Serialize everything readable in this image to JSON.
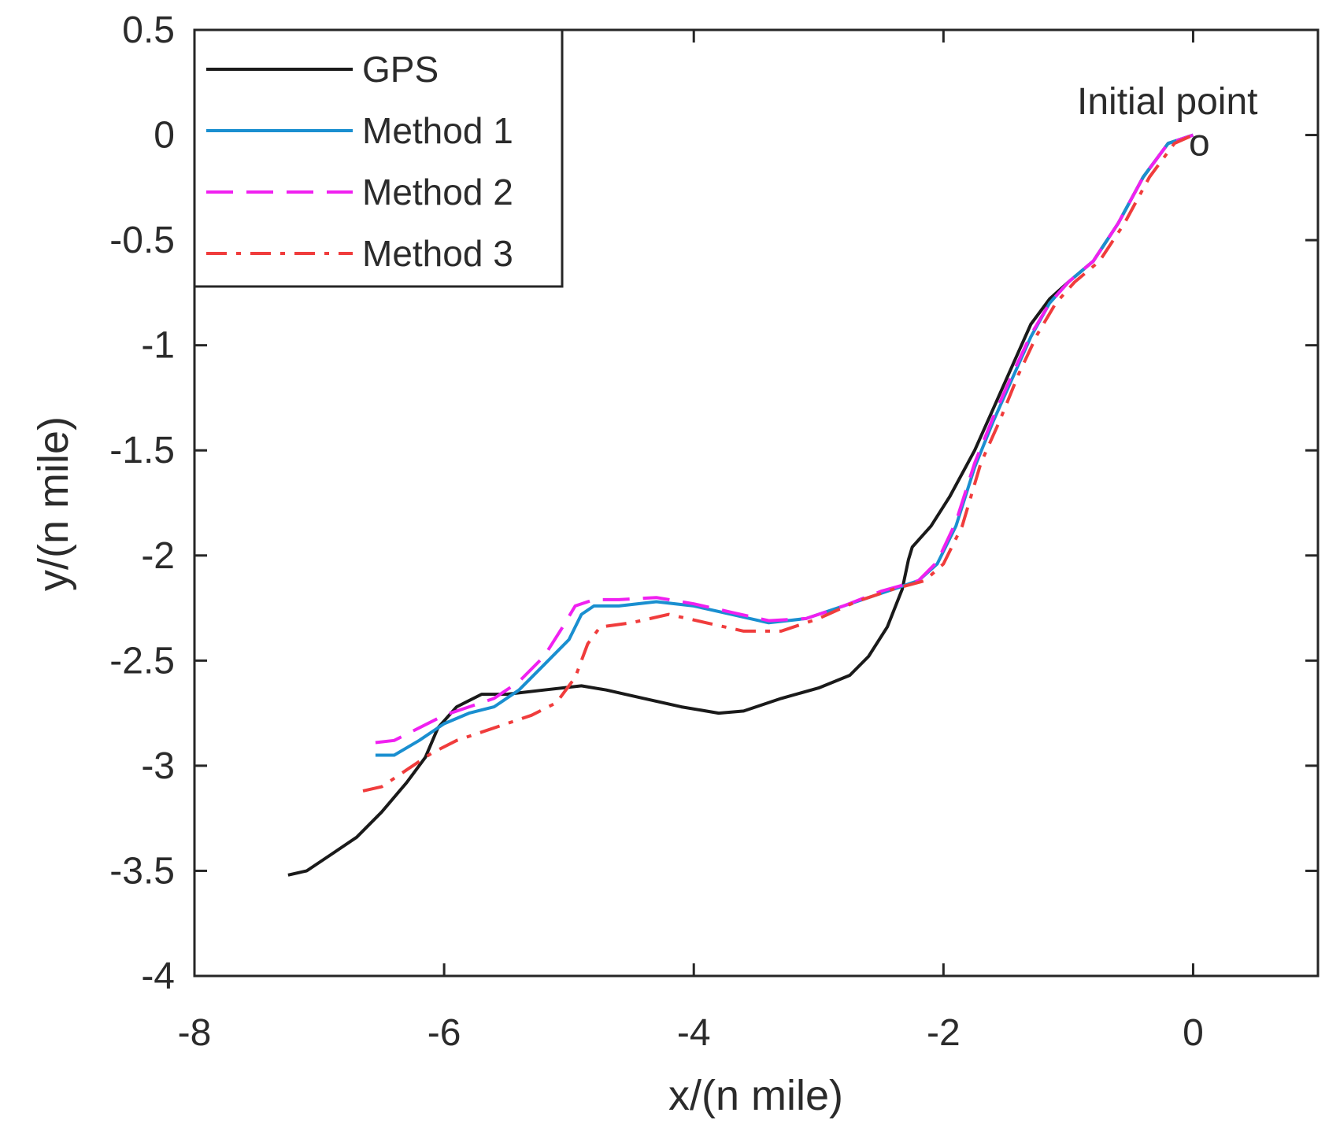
{
  "chart_data": {
    "type": "line",
    "title": "",
    "xlabel": "x/(n mile)",
    "ylabel": "y/(n mile)",
    "xlim": [
      -8,
      1
    ],
    "ylim": [
      -4,
      0.5
    ],
    "xticks": [
      -8,
      -6,
      -4,
      -2,
      0
    ],
    "xtick_labels": [
      "-8",
      "-6",
      "-4",
      "-2",
      "0"
    ],
    "yticks": [
      0.5,
      0,
      -0.5,
      -1,
      -1.5,
      -2,
      -2.5,
      -3,
      -3.5,
      -4
    ],
    "ytick_labels": [
      "0.5",
      "0",
      "-0.5",
      "-1",
      "-1.5",
      "-2",
      "-2.5",
      "-3",
      "-3.5",
      "-4"
    ],
    "legend_position": "top-left",
    "annotation": {
      "text": "Initial point",
      "marker": "o",
      "x": 0.05,
      "y": 0.0
    },
    "series": [
      {
        "name": "GPS",
        "color": "#1a1a1a",
        "style": "solid",
        "points": [
          [
            -7.25,
            -3.52
          ],
          [
            -7.1,
            -3.5
          ],
          [
            -6.9,
            -3.42
          ],
          [
            -6.7,
            -3.34
          ],
          [
            -6.5,
            -3.22
          ],
          [
            -6.3,
            -3.08
          ],
          [
            -6.15,
            -2.96
          ],
          [
            -6.05,
            -2.82
          ],
          [
            -5.9,
            -2.72
          ],
          [
            -5.7,
            -2.66
          ],
          [
            -5.5,
            -2.66
          ],
          [
            -5.2,
            -2.64
          ],
          [
            -4.9,
            -2.62
          ],
          [
            -4.7,
            -2.64
          ],
          [
            -4.4,
            -2.68
          ],
          [
            -4.1,
            -2.72
          ],
          [
            -3.8,
            -2.75
          ],
          [
            -3.6,
            -2.74
          ],
          [
            -3.3,
            -2.68
          ],
          [
            -3.0,
            -2.63
          ],
          [
            -2.75,
            -2.57
          ],
          [
            -2.6,
            -2.48
          ],
          [
            -2.45,
            -2.34
          ],
          [
            -2.33,
            -2.16
          ],
          [
            -2.28,
            -2.02
          ],
          [
            -2.25,
            -1.96
          ],
          [
            -2.1,
            -1.86
          ],
          [
            -1.95,
            -1.72
          ],
          [
            -1.75,
            -1.5
          ],
          [
            -1.6,
            -1.3
          ],
          [
            -1.45,
            -1.1
          ],
          [
            -1.3,
            -0.9
          ],
          [
            -1.15,
            -0.78
          ],
          [
            -1.0,
            -0.7
          ],
          [
            -0.8,
            -0.6
          ],
          [
            -0.6,
            -0.42
          ],
          [
            -0.4,
            -0.2
          ],
          [
            -0.2,
            -0.04
          ],
          [
            0.0,
            0.0
          ]
        ]
      },
      {
        "name": "Method 1",
        "color": "#1a8fd0",
        "style": "solid",
        "points": [
          [
            -6.55,
            -2.95
          ],
          [
            -6.4,
            -2.95
          ],
          [
            -6.2,
            -2.88
          ],
          [
            -6.0,
            -2.8
          ],
          [
            -5.8,
            -2.75
          ],
          [
            -5.6,
            -2.72
          ],
          [
            -5.4,
            -2.64
          ],
          [
            -5.2,
            -2.52
          ],
          [
            -5.0,
            -2.4
          ],
          [
            -4.9,
            -2.28
          ],
          [
            -4.8,
            -2.24
          ],
          [
            -4.6,
            -2.24
          ],
          [
            -4.3,
            -2.22
          ],
          [
            -4.0,
            -2.24
          ],
          [
            -3.7,
            -2.28
          ],
          [
            -3.4,
            -2.32
          ],
          [
            -3.1,
            -2.3
          ],
          [
            -2.8,
            -2.24
          ],
          [
            -2.5,
            -2.18
          ],
          [
            -2.2,
            -2.12
          ],
          [
            -2.05,
            -2.04
          ],
          [
            -1.9,
            -1.86
          ],
          [
            -1.75,
            -1.58
          ],
          [
            -1.6,
            -1.36
          ],
          [
            -1.45,
            -1.16
          ],
          [
            -1.3,
            -0.96
          ],
          [
            -1.15,
            -0.8
          ],
          [
            -1.0,
            -0.7
          ],
          [
            -0.8,
            -0.6
          ],
          [
            -0.6,
            -0.42
          ],
          [
            -0.4,
            -0.2
          ],
          [
            -0.2,
            -0.04
          ],
          [
            0.0,
            0.0
          ]
        ]
      },
      {
        "name": "Method 2",
        "color": "#f020f0",
        "style": "dashed",
        "points": [
          [
            -6.55,
            -2.89
          ],
          [
            -6.4,
            -2.88
          ],
          [
            -6.2,
            -2.82
          ],
          [
            -6.0,
            -2.76
          ],
          [
            -5.8,
            -2.72
          ],
          [
            -5.6,
            -2.68
          ],
          [
            -5.4,
            -2.6
          ],
          [
            -5.2,
            -2.48
          ],
          [
            -5.05,
            -2.34
          ],
          [
            -4.95,
            -2.24
          ],
          [
            -4.8,
            -2.21
          ],
          [
            -4.6,
            -2.21
          ],
          [
            -4.3,
            -2.2
          ],
          [
            -4.0,
            -2.23
          ],
          [
            -3.7,
            -2.27
          ],
          [
            -3.4,
            -2.31
          ],
          [
            -3.1,
            -2.3
          ],
          [
            -2.8,
            -2.24
          ],
          [
            -2.5,
            -2.17
          ],
          [
            -2.2,
            -2.12
          ],
          [
            -2.05,
            -2.03
          ],
          [
            -1.9,
            -1.84
          ],
          [
            -1.75,
            -1.56
          ],
          [
            -1.6,
            -1.34
          ],
          [
            -1.45,
            -1.14
          ],
          [
            -1.3,
            -0.95
          ],
          [
            -1.15,
            -0.8
          ],
          [
            -1.0,
            -0.7
          ],
          [
            -0.8,
            -0.6
          ],
          [
            -0.6,
            -0.42
          ],
          [
            -0.4,
            -0.2
          ],
          [
            -0.2,
            -0.04
          ],
          [
            0.0,
            0.0
          ]
        ]
      },
      {
        "name": "Method 3",
        "color": "#f03c3c",
        "style": "dashdot",
        "points": [
          [
            -6.65,
            -3.12
          ],
          [
            -6.5,
            -3.1
          ],
          [
            -6.3,
            -3.02
          ],
          [
            -6.1,
            -2.94
          ],
          [
            -5.9,
            -2.88
          ],
          [
            -5.7,
            -2.84
          ],
          [
            -5.5,
            -2.8
          ],
          [
            -5.3,
            -2.76
          ],
          [
            -5.1,
            -2.7
          ],
          [
            -4.95,
            -2.58
          ],
          [
            -4.85,
            -2.42
          ],
          [
            -4.75,
            -2.34
          ],
          [
            -4.5,
            -2.32
          ],
          [
            -4.2,
            -2.28
          ],
          [
            -3.9,
            -2.32
          ],
          [
            -3.6,
            -2.36
          ],
          [
            -3.3,
            -2.36
          ],
          [
            -3.0,
            -2.3
          ],
          [
            -2.7,
            -2.22
          ],
          [
            -2.4,
            -2.16
          ],
          [
            -2.15,
            -2.12
          ],
          [
            -2.0,
            -2.04
          ],
          [
            -1.85,
            -1.86
          ],
          [
            -1.7,
            -1.56
          ],
          [
            -1.55,
            -1.36
          ],
          [
            -1.4,
            -1.14
          ],
          [
            -1.25,
            -0.95
          ],
          [
            -1.1,
            -0.8
          ],
          [
            -0.95,
            -0.7
          ],
          [
            -0.75,
            -0.6
          ],
          [
            -0.55,
            -0.42
          ],
          [
            -0.35,
            -0.2
          ],
          [
            -0.15,
            -0.04
          ],
          [
            0.0,
            0.0
          ]
        ]
      }
    ]
  }
}
